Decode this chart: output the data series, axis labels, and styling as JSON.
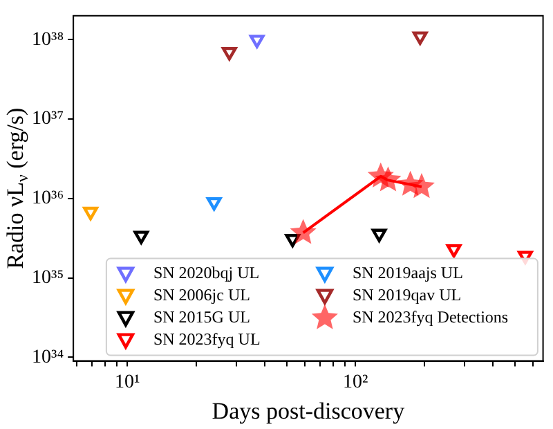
{
  "chart_data": {
    "type": "scatter",
    "xlabel": "Days post-discovery",
    "ylabel": "Radio νL$_{ν}$ (erg/s)",
    "log": "xy",
    "grid": false,
    "legend": "bottom",
    "xlim": [
      5.8,
      664
    ],
    "ylim": [
      9e+33,
      2e+38
    ],
    "xticks": [
      {
        "value": 6,
        "label": null
      },
      {
        "value": 7,
        "label": null
      },
      {
        "value": 8,
        "label": null
      },
      {
        "value": 9,
        "label": null
      },
      {
        "value": 10,
        "label": "10¹"
      },
      {
        "value": 20,
        "label": null
      },
      {
        "value": 30,
        "label": null
      },
      {
        "value": 40,
        "label": null
      },
      {
        "value": 50,
        "label": null
      },
      {
        "value": 60,
        "label": null
      },
      {
        "value": 70,
        "label": null
      },
      {
        "value": 80,
        "label": null
      },
      {
        "value": 90,
        "label": null
      },
      {
        "value": 100,
        "label": "10²"
      },
      {
        "value": 200,
        "label": null
      },
      {
        "value": 300,
        "label": null
      },
      {
        "value": 400,
        "label": null
      },
      {
        "value": 500,
        "label": null
      },
      {
        "value": 600,
        "label": null
      }
    ],
    "yticks": [
      {
        "value": 1e+34,
        "label": "10³⁴"
      },
      {
        "value": 1e+35,
        "label": "10³⁵"
      },
      {
        "value": 1e+36,
        "label": "10³⁶"
      },
      {
        "value": 1e+37,
        "label": "10³⁷"
      },
      {
        "value": 1e+38,
        "label": "10³⁸"
      }
    ],
    "series": [
      {
        "name": "SN 2020bqj UL",
        "color": "#6f6fff",
        "marker": "triangle",
        "x": [
          37
        ],
        "values": [
          1e+38
        ]
      },
      {
        "name": "SN 2006jc UL",
        "color": "#ffa500",
        "marker": "triangle",
        "x": [
          6.9
        ],
        "values": [
          6.8e+35
        ]
      },
      {
        "name": "SN 2015G UL",
        "color": "#000000",
        "marker": "triangle",
        "x": [
          11.5,
          53,
          127
        ],
        "values": [
          3.4e+35,
          3.1e+35,
          3.6e+35
        ]
      },
      {
        "name": "SN 2023fyq UL",
        "color": "#ff0000",
        "marker": "triangle",
        "x": [
          270,
          555
        ],
        "values": [
          2.3e+35,
          1.9e+35
        ]
      },
      {
        "name": "SN 2019aajs UL",
        "color": "#1e90ff",
        "marker": "triangle",
        "x": [
          24
        ],
        "values": [
          9e+35
        ]
      },
      {
        "name": "SN 2019qav UL",
        "color": "#a52a2a",
        "marker": "triangle",
        "x": [
          28,
          192
        ],
        "values": [
          7e+37,
          1.1e+38
        ]
      },
      {
        "name": "SN 2023fyq Detections",
        "type": "line",
        "color": "#ff0000",
        "marker": "star",
        "line_style": "solid",
        "x": [
          59,
          129,
          139,
          174,
          195
        ],
        "values": [
          3.7e+35,
          1.9e+36,
          1.7e+36,
          1.5e+36,
          1.4e+36
        ]
      }
    ]
  }
}
